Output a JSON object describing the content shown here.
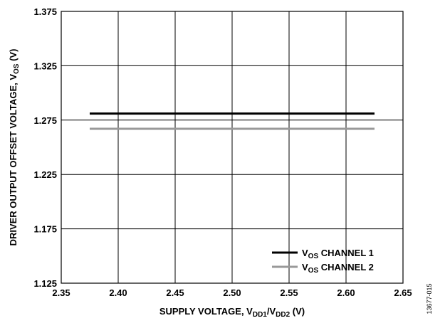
{
  "chart_data": {
    "type": "line",
    "title": "",
    "xlabel": {
      "prefix": "SUPPLY VOLTAGE, V",
      "sub1": "DD1",
      "mid": "/V",
      "sub2": "DD2",
      "suffix": " (V)"
    },
    "ylabel": {
      "prefix": "DRIVER OUTPUT OFFSET VOLTAGE, V",
      "sub": "OS",
      "suffix": " (V)"
    },
    "xlim": [
      2.35,
      2.65
    ],
    "ylim": [
      1.125,
      1.375
    ],
    "xticks": [
      "2.35",
      "2.40",
      "2.45",
      "2.50",
      "2.55",
      "2.60",
      "2.65"
    ],
    "yticks": [
      "1.125",
      "1.175",
      "1.225",
      "1.275",
      "1.325",
      "1.375"
    ],
    "grid": true,
    "legend_position": "bottom-right",
    "series": [
      {
        "name": {
          "prefix": "V",
          "sub": "OS",
          "suffix": " CHANNEL 1"
        },
        "color": "#000000",
        "x": [
          2.375,
          2.625
        ],
        "y": [
          1.281,
          1.281
        ]
      },
      {
        "name": {
          "prefix": "V",
          "sub": "OS",
          "suffix": " CHANNEL 2"
        },
        "color": "#999999",
        "x": [
          2.375,
          2.625
        ],
        "y": [
          1.267,
          1.267
        ]
      }
    ]
  },
  "figure_id": "13677-015"
}
